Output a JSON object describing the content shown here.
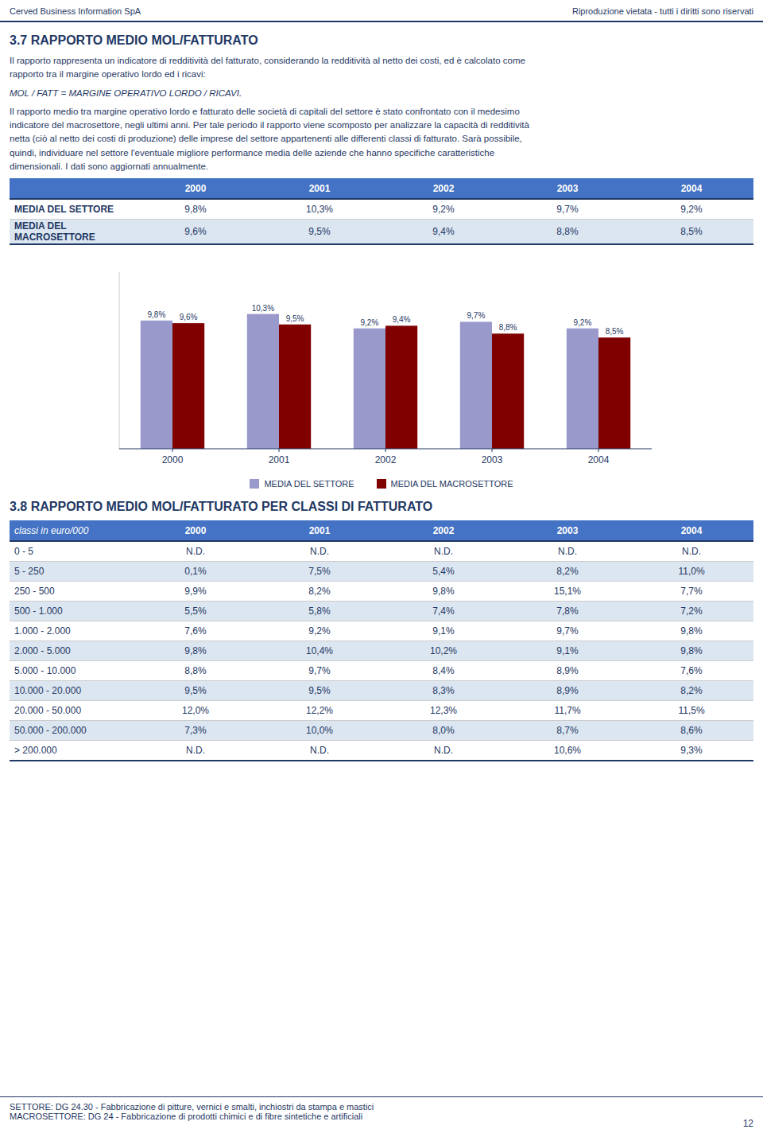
{
  "page": {
    "header_left": "Cerved Business Information SpA",
    "header_right": "Riproduzione vietata - tutti i diritti sono riservati",
    "section37_title": "3.7 RAPPORTO MEDIO MOL/FATTURATO",
    "section37_text1": "Il rapporto rappresenta un indicatore di redditività del fatturato, considerando la redditività al netto dei costi, ed è calcolato come\nrapporto tra il margine operativo lordo ed i ricavi:",
    "section37_text2": "MOL / FATT = MARGINE OPERATIVO LORDO / RICAVI.",
    "section37_text3": "Il rapporto medio tra margine operativo lordo e fatturato delle società di capitali del settore è stato confrontato con il medesimo\nindicatore del macrosettore, negli ultimi anni. Per tale periodo il rapporto viene scomposto per analizzare la capacità di redditività\nnetta (ciò al netto dei costi di produzione) delle imprese del settore appartenenti alle differenti classi di fatturato. Sarà possibile,\nquindi, individuare nel settore l'eventuale migliore performance media delle aziende che hanno specifiche caratteristiche\ndimensionali. I dati sono aggiornati annualmente.",
    "table37": {
      "columns": [
        "2000",
        "2001",
        "2002",
        "2003",
        "2004"
      ],
      "rows": [
        {
          "label": "MEDIA DEL SETTORE",
          "values": [
            "9,8%",
            "10,3%",
            "9,2%",
            "9,7%",
            "9,2%"
          ]
        },
        {
          "label": "MEDIA DEL MACROSETTORE",
          "values": [
            "9,6%",
            "9,5%",
            "9,4%",
            "8,8%",
            "8,5%"
          ]
        }
      ]
    },
    "section38_title": "3.8 RAPPORTO MEDIO MOL/FATTURATO PER CLASSI DI FATTURATO",
    "table38": {
      "header": [
        "classi in euro/000",
        "2000",
        "2001",
        "2002",
        "2003",
        "2004"
      ],
      "rows": [
        [
          "0 - 5",
          "N.D.",
          "N.D.",
          "N.D.",
          "N.D.",
          "N.D."
        ],
        [
          "5 - 250",
          "0,1%",
          "7,5%",
          "5,4%",
          "8,2%",
          "11,0%"
        ],
        [
          "250 - 500",
          "9,9%",
          "8,2%",
          "9,8%",
          "15,1%",
          "7,7%"
        ],
        [
          "500 - 1.000",
          "5,5%",
          "5,8%",
          "7,4%",
          "7,8%",
          "7,2%"
        ],
        [
          "1.000 - 2.000",
          "7,6%",
          "9,2%",
          "9,1%",
          "9,7%",
          "9,8%"
        ],
        [
          "2.000 - 5.000",
          "9,8%",
          "10,4%",
          "10,2%",
          "9,1%",
          "9,8%"
        ],
        [
          "5.000 - 10.000",
          "8,8%",
          "9,7%",
          "8,4%",
          "8,9%",
          "7,6%"
        ],
        [
          "10.000 - 20.000",
          "9,5%",
          "9,5%",
          "8,3%",
          "8,9%",
          "8,2%"
        ],
        [
          "20.000 - 50.000",
          "12,0%",
          "12,2%",
          "12,3%",
          "11,7%",
          "11,5%"
        ],
        [
          "50.000 - 200.000",
          "7,3%",
          "10,0%",
          "8,0%",
          "8,7%",
          "8,6%"
        ],
        [
          "> 200.000",
          "N.D.",
          "N.D.",
          "N.D.",
          "10,6%",
          "9,3%"
        ]
      ]
    },
    "footer_settore": "SETTORE: DG 24.30 - Fabbricazione di pitture, vernici e smalti, inchiostri da stampa e mastici",
    "footer_macrosettore": "MACROSETTORE: DG 24 - Fabbricazione di prodotti chimici e di fibre sintetiche e artificiali",
    "footer_page": "12"
  },
  "chart_data": {
    "type": "bar",
    "categories": [
      "2000",
      "2001",
      "2002",
      "2003",
      "2004"
    ],
    "series": [
      {
        "name": "MEDIA DEL SETTORE",
        "color": "#9999cc",
        "values": [
          9.8,
          10.3,
          9.2,
          9.7,
          9.2
        ],
        "value_labels": [
          "9,8%",
          "10,3%",
          "9,2%",
          "9,7%",
          "9,2%"
        ]
      },
      {
        "name": "MEDIA DEL MACROSETTORE",
        "color": "#800000",
        "values": [
          9.6,
          9.5,
          9.4,
          8.8,
          8.5
        ],
        "value_labels": [
          "9,6%",
          "9,5%",
          "9,4%",
          "8,8%",
          "8,5%"
        ]
      }
    ],
    "ylim": [
      0,
      13.5
    ],
    "data_labels": true,
    "tick_labels": "x",
    "grid": false,
    "legend": "bottom"
  }
}
